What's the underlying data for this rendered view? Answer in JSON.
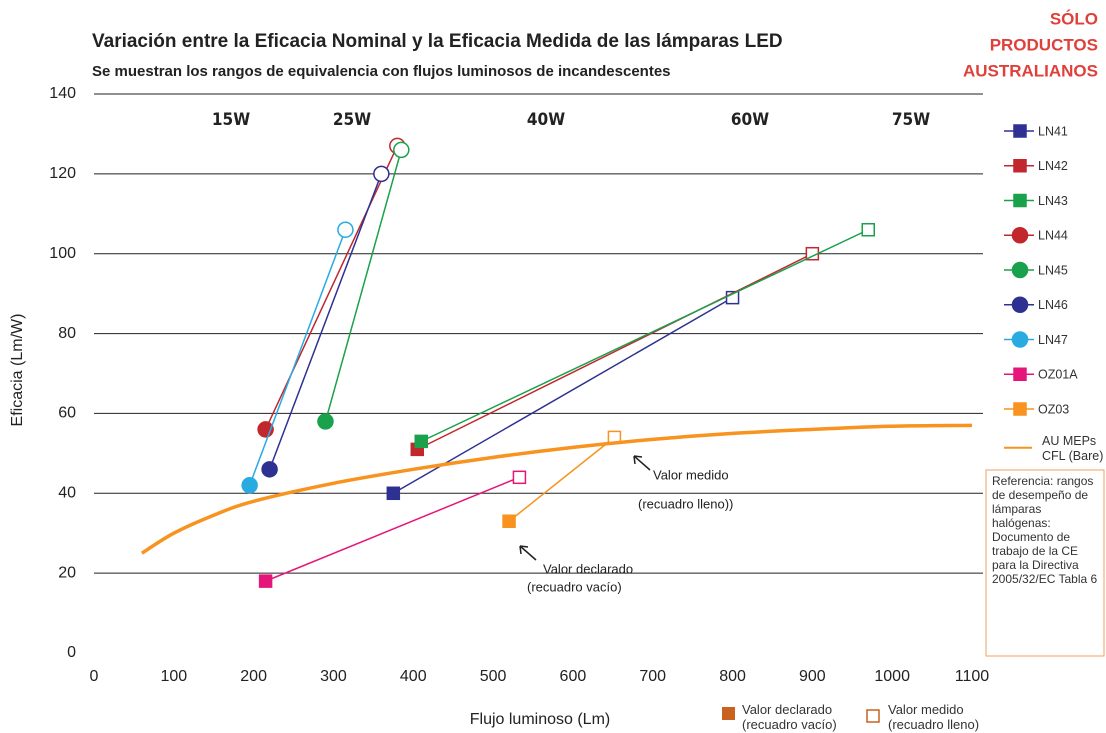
{
  "chart_data": {
    "type": "line",
    "title": "Variación entre la Eficacia Nominal y la Eficacia Medida de las lámparas LED",
    "subtitle": "Se muestran los rangos de equivalencia con flujos luminosos de incandescentes",
    "badge": [
      "SÓLO",
      "PRODUCTOS",
      "AUSTRALIANOS"
    ],
    "x_label": "Flujo luminoso (Lm)",
    "y_label": "Eficacia (Lm/W)",
    "xlim": [
      0,
      1100
    ],
    "ylim": [
      0,
      140
    ],
    "xticks": [
      0,
      100,
      200,
      300,
      400,
      500,
      600,
      700,
      800,
      900,
      1000,
      1100
    ],
    "yticks": [
      0,
      20,
      40,
      60,
      80,
      100,
      120,
      140
    ],
    "grid": true,
    "watt_labels": [
      "15W",
      "25W",
      "40W",
      "60W",
      "75W"
    ],
    "series": [
      {
        "name": "LN41",
        "color": "#2e3192",
        "marker": "square",
        "x": [
          375,
          800
        ],
        "values": [
          40,
          89
        ]
      },
      {
        "name": "LN42",
        "color": "#c1272d",
        "marker": "square",
        "x": [
          405,
          900
        ],
        "values": [
          51,
          100
        ]
      },
      {
        "name": "LN43",
        "color": "#1aa14b",
        "marker": "square",
        "x": [
          410,
          970
        ],
        "values": [
          53,
          106
        ]
      },
      {
        "name": "LN44",
        "color": "#c1272d",
        "marker": "circle",
        "x": [
          215,
          380
        ],
        "values": [
          56,
          127
        ]
      },
      {
        "name": "LN45",
        "color": "#1aa14b",
        "marker": "circle",
        "x": [
          290,
          385
        ],
        "values": [
          58,
          126
        ]
      },
      {
        "name": "LN46",
        "color": "#2e3192",
        "marker": "circle",
        "x": [
          220,
          360
        ],
        "values": [
          46,
          120
        ]
      },
      {
        "name": "LN47",
        "color": "#29abe2",
        "marker": "circle",
        "x": [
          195,
          315
        ],
        "values": [
          42,
          106
        ]
      },
      {
        "name": "OZ01A",
        "color": "#e6157a",
        "marker": "square",
        "x": [
          215,
          533
        ],
        "values": [
          18,
          44
        ]
      },
      {
        "name": "OZ03",
        "color": "#f7931e",
        "marker": "square",
        "x": [
          520,
          652
        ],
        "values": [
          33,
          54
        ]
      },
      {
        "name": "AU MEPs CFL (Bare)",
        "color": "#f7931e",
        "marker": "none",
        "x": [
          60,
          100,
          150,
          200,
          300,
          400,
          500,
          600,
          700,
          800,
          900,
          1000,
          1100
        ],
        "values": [
          25,
          30,
          34.5,
          38,
          42.5,
          46,
          49,
          51.5,
          53.5,
          55,
          56,
          56.8,
          57
        ]
      }
    ],
    "annotations": [
      "Valor medido",
      "(recuadro lleno))",
      "Valor declarado",
      "(recuadro vacío)"
    ],
    "reference_note": "Referencia: rangos de desempeño de lámparas halógenas: Documento de trabajo de la CE para la Directiva 2005/32/EC Tabla 6",
    "marker_legend": [
      "Valor declarado (recuadro vacío)",
      "Valor medido (recuadro lleno)"
    ]
  }
}
